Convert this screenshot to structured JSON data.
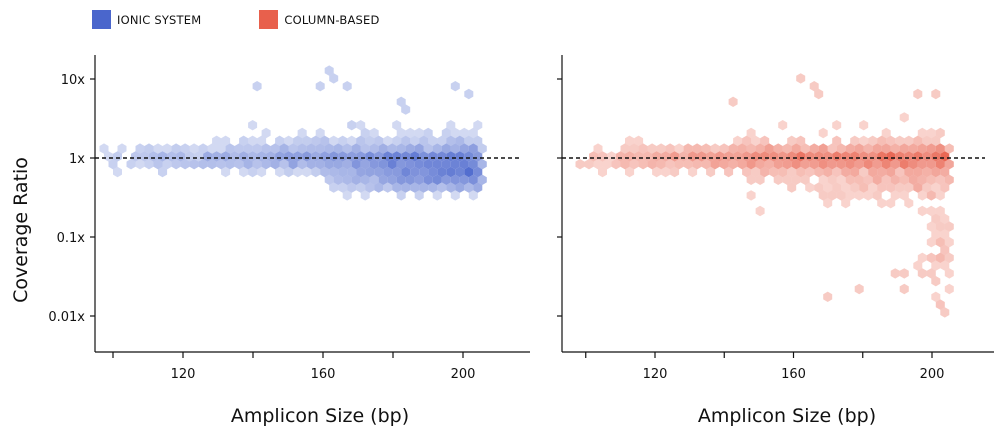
{
  "legend": {
    "items": [
      {
        "label": "IONIC SYSTEM",
        "color": "#4a66cc"
      },
      {
        "label": "COLUMN-BASED",
        "color": "#e8604c"
      }
    ]
  },
  "chart_data": [
    {
      "type": "hexbin",
      "series_name": "IONIC SYSTEM",
      "color": "#4a66cc",
      "xlabel": "Amplicon Size (bp)",
      "ylabel": "Coverage Ratio",
      "xlim": [
        95,
        215
      ],
      "ylim_log10": [
        -2.5,
        0.95
      ],
      "xticks": [
        120,
        160,
        200
      ],
      "xtick_labels": [
        "120",
        "160",
        "200"
      ],
      "yticks_log10": [
        1,
        0,
        -1,
        -2
      ],
      "ytick_labels": [
        "10x",
        "1x",
        "0.1x",
        "0.01x"
      ],
      "reference_line_y": 1,
      "clusters": [
        {
          "x_range": [
            97,
            205
          ],
          "y_center_log10": 0.0,
          "y_spread_log10": 0.12,
          "density": "high"
        },
        {
          "x_range": [
            130,
            205
          ],
          "y_center_log10": 0.05,
          "y_spread_log10": 0.3,
          "density": "medium"
        },
        {
          "x_range": [
            160,
            205
          ],
          "y_center_log10": -0.2,
          "y_spread_log10": 0.2,
          "density": "high"
        }
      ],
      "outliers": [
        {
          "x": 141,
          "y": 8.5
        },
        {
          "x": 161,
          "y": 13
        },
        {
          "x": 163,
          "y": 10
        },
        {
          "x": 159,
          "y": 9
        },
        {
          "x": 166,
          "y": 8.5
        },
        {
          "x": 199,
          "y": 8
        },
        {
          "x": 201,
          "y": 7
        },
        {
          "x": 183,
          "y": 5.2
        },
        {
          "x": 184,
          "y": 4.2
        }
      ]
    },
    {
      "type": "hexbin",
      "series_name": "COLUMN-BASED",
      "color": "#e8604c",
      "xlabel": "Amplicon Size (bp)",
      "ylabel": "",
      "xlim": [
        95,
        215
      ],
      "ylim_log10": [
        -2.5,
        0.95
      ],
      "xticks": [
        120,
        160,
        200
      ],
      "xtick_labels": [
        "120",
        "160",
        "200"
      ],
      "yticks_log10": [
        1,
        0,
        -1,
        -2
      ],
      "reference_line_y": 1,
      "clusters": [
        {
          "x_range": [
            97,
            205
          ],
          "y_center_log10": 0.0,
          "y_spread_log10": 0.15,
          "density": "high"
        },
        {
          "x_range": [
            140,
            205
          ],
          "y_center_log10": -0.1,
          "y_spread_log10": 0.4,
          "density": "medium"
        },
        {
          "x_range": [
            195,
            205
          ],
          "y_center_log10": -1.2,
          "y_spread_log10": 0.7,
          "density": "low"
        }
      ],
      "outliers": [
        {
          "x": 163,
          "y": 10.5
        },
        {
          "x": 165,
          "y": 8
        },
        {
          "x": 166,
          "y": 6
        },
        {
          "x": 142,
          "y": 5.5
        },
        {
          "x": 196,
          "y": 6
        },
        {
          "x": 201,
          "y": 7
        },
        {
          "x": 169,
          "y": 0.016
        },
        {
          "x": 178,
          "y": 0.02
        },
        {
          "x": 191,
          "y": 0.02
        },
        {
          "x": 189,
          "y": 0.035
        },
        {
          "x": 193,
          "y": 0.035
        },
        {
          "x": 200,
          "y": 0.03
        },
        {
          "x": 203,
          "y": 0.015
        },
        {
          "x": 204,
          "y": 0.012
        },
        {
          "x": 201,
          "y": 0.05
        },
        {
          "x": 203,
          "y": 0.07
        }
      ]
    }
  ]
}
